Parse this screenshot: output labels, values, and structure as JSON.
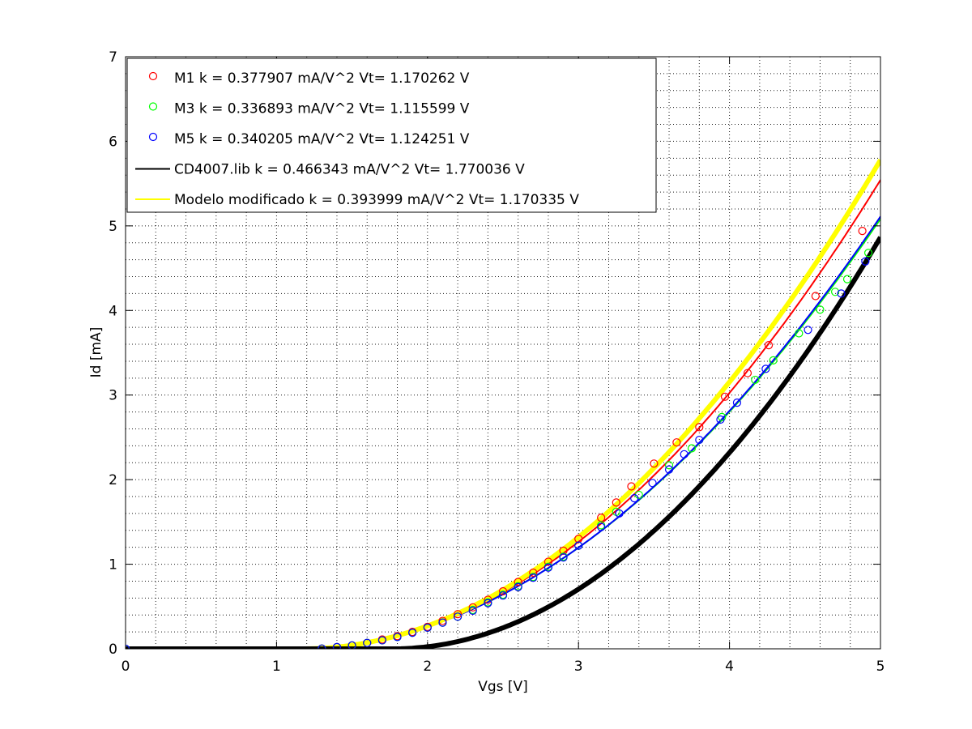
{
  "chart_data": {
    "type": "line",
    "title": "",
    "xlabel": "Vgs [V]",
    "ylabel": "Id [mA]",
    "xlim": [
      0,
      5
    ],
    "ylim": [
      0,
      7
    ],
    "xticks": [
      0,
      1,
      2,
      3,
      4,
      5
    ],
    "yticks": [
      0,
      1,
      2,
      3,
      4,
      5,
      6,
      7
    ],
    "grid": "on (dotted, major and minor)",
    "legend_position": "top-left",
    "series": [
      {
        "name": "M1 k = 0.377907 mA/V^2  Vt= 1.170262 V",
        "kind": "markers",
        "marker": "circle",
        "color": "#ff0000",
        "x": [
          0,
          1.3,
          1.4,
          1.5,
          1.6,
          1.7,
          1.8,
          1.9,
          2.0,
          2.1,
          2.2,
          2.3,
          2.4,
          2.5,
          2.6,
          2.7,
          2.8,
          2.9,
          3.0,
          3.15,
          3.25,
          3.35,
          3.5,
          3.65,
          3.8,
          3.97,
          4.12,
          4.26,
          4.57,
          4.88
        ],
        "y": [
          0,
          0.003,
          0.02,
          0.04,
          0.07,
          0.11,
          0.15,
          0.2,
          0.26,
          0.33,
          0.41,
          0.49,
          0.58,
          0.68,
          0.79,
          0.9,
          1.03,
          1.16,
          1.3,
          1.55,
          1.73,
          1.92,
          2.19,
          2.44,
          2.62,
          2.98,
          3.26,
          3.59,
          4.17,
          4.94
        ]
      },
      {
        "name": "M3 k = 0.336893 mA/V^2  Vt= 1.115599 V",
        "kind": "markers",
        "marker": "circle",
        "color": "#00ff00",
        "x": [
          0,
          1.3,
          1.4,
          1.5,
          1.6,
          1.7,
          1.8,
          1.9,
          2.0,
          2.1,
          2.2,
          2.3,
          2.4,
          2.5,
          2.6,
          2.7,
          2.8,
          2.9,
          3.0,
          3.15,
          3.25,
          3.4,
          3.6,
          3.75,
          3.95,
          4.17,
          4.29,
          4.46,
          4.6,
          4.7,
          4.78,
          4.92
        ],
        "y": [
          0,
          0.003,
          0.02,
          0.04,
          0.07,
          0.1,
          0.14,
          0.19,
          0.25,
          0.31,
          0.38,
          0.46,
          0.55,
          0.64,
          0.74,
          0.85,
          0.97,
          1.09,
          1.22,
          1.46,
          1.62,
          1.82,
          2.17,
          2.37,
          2.74,
          3.18,
          3.41,
          3.73,
          4.01,
          4.22,
          4.37,
          4.68
        ]
      },
      {
        "name": "M5 k = 0.340205 mA/V^2  Vt= 1.124251 V",
        "kind": "markers",
        "marker": "circle",
        "color": "#0000ff",
        "x": [
          0,
          1.3,
          1.4,
          1.5,
          1.6,
          1.7,
          1.8,
          1.9,
          2.0,
          2.1,
          2.2,
          2.3,
          2.4,
          2.5,
          2.6,
          2.7,
          2.8,
          2.9,
          3.0,
          3.15,
          3.27,
          3.37,
          3.49,
          3.6,
          3.7,
          3.8,
          3.94,
          4.05,
          4.24,
          4.52,
          4.74,
          4.9
        ],
        "y": [
          0,
          0.003,
          0.02,
          0.04,
          0.07,
          0.1,
          0.14,
          0.19,
          0.25,
          0.31,
          0.38,
          0.45,
          0.54,
          0.63,
          0.73,
          0.84,
          0.96,
          1.08,
          1.22,
          1.44,
          1.6,
          1.78,
          1.96,
          2.12,
          2.3,
          2.47,
          2.71,
          2.91,
          3.31,
          3.77,
          4.2,
          4.58
        ]
      },
      {
        "name": "CD4007.lib k = 0.466343 mA/V^2  Vt= 1.770036 V",
        "kind": "line",
        "color": "#000000",
        "model": {
          "k": 0.466343,
          "vt": 1.770036
        },
        "x": [
          0,
          1.0,
          1.5,
          1.77,
          2.0,
          2.25,
          2.5,
          2.75,
          3.0,
          3.25,
          3.5,
          3.75,
          4.0,
          4.25,
          4.5,
          4.75,
          5.0
        ],
        "y": [
          0,
          0,
          0,
          0,
          0.025,
          0.107,
          0.249,
          0.448,
          0.705,
          1.021,
          1.396,
          1.829,
          2.32,
          2.87,
          3.48,
          4.15,
          4.87
        ]
      },
      {
        "name": "Modelo modificado k = 0.393999 mA/V^2  Vt= 1.170335 V",
        "kind": "line",
        "color": "#ffff00",
        "model": {
          "k": 0.393999,
          "vt": 1.170335
        },
        "x": [
          0,
          1.0,
          1.17,
          1.5,
          2.0,
          2.5,
          3.0,
          3.5,
          4.0,
          4.5,
          5.0
        ],
        "y": [
          0,
          0,
          0,
          0.043,
          0.271,
          0.696,
          1.319,
          2.139,
          3.156,
          4.37,
          5.78
        ]
      },
      {
        "name": "",
        "kind": "line",
        "color": "#ff0000",
        "model": {
          "k": 0.377907,
          "vt": 1.170262
        },
        "x": [
          1.1,
          1.17,
          1.5,
          2.0,
          2.5,
          3.0,
          3.5,
          4.0,
          4.5,
          5.0
        ],
        "y": [
          0,
          0,
          0.041,
          0.26,
          0.668,
          1.265,
          2.051,
          3.027,
          4.191,
          5.545
        ]
      },
      {
        "name": "",
        "kind": "line",
        "color": "#00ff00",
        "model": {
          "k": 0.336893,
          "vt": 1.115599
        },
        "x": [
          1.1,
          1.116,
          1.5,
          2.0,
          2.5,
          3.0,
          3.5,
          4.0,
          4.5,
          5.0
        ],
        "y": [
          0,
          0,
          0.05,
          0.263,
          0.645,
          1.196,
          1.915,
          2.804,
          3.861,
          5.087
        ]
      },
      {
        "name": "",
        "kind": "line",
        "color": "#0000ff",
        "model": {
          "k": 0.340205,
          "vt": 1.124251
        },
        "x": [
          1.1,
          1.124,
          1.5,
          2.0,
          2.5,
          3.0,
          3.5,
          4.0,
          4.5,
          5.0
        ],
        "y": [
          0,
          0,
          0.048,
          0.261,
          0.644,
          1.197,
          1.92,
          2.814,
          3.877,
          5.111
        ]
      }
    ]
  }
}
